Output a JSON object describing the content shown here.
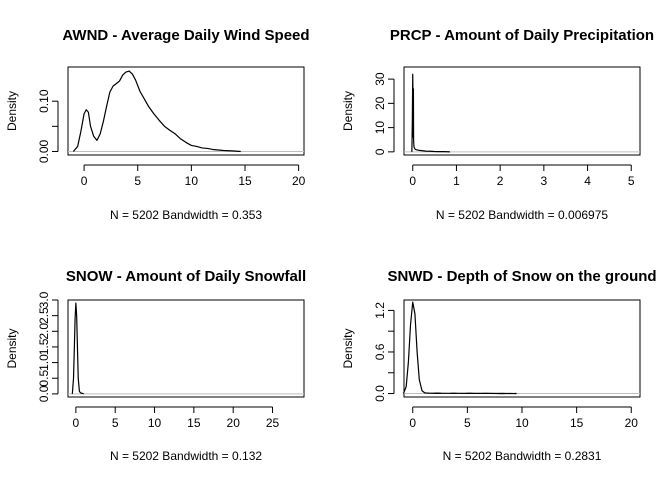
{
  "chart_data": [
    {
      "type": "line",
      "title": "AWND - Average Daily Wind Speed",
      "xlabel": "N = 5202   Bandwidth = 0.353",
      "ylabel": "Density",
      "xlim": [
        -1.5,
        20.5
      ],
      "ylim": [
        -0.007,
        0.168
      ],
      "xticks": [
        0,
        5,
        10,
        15,
        20
      ],
      "yticks": [
        0.0,
        0.05,
        0.1
      ],
      "ytick_labels": [
        "0.00",
        "",
        "0.10"
      ],
      "series": [
        {
          "x": [
            -1.0,
            -0.6,
            -0.3,
            0.0,
            0.2,
            0.4,
            0.6,
            0.9,
            1.2,
            1.5,
            1.8,
            2.1,
            2.4,
            2.7,
            3.0,
            3.3,
            3.6,
            3.9,
            4.2,
            4.5,
            4.8,
            5.2,
            5.6,
            6.0,
            6.5,
            7.0,
            7.5,
            8.0,
            8.5,
            9.0,
            9.5,
            10.0,
            10.5,
            11.0,
            11.5,
            12.0,
            13.0,
            14.0,
            14.6
          ],
          "y": [
            0.0,
            0.01,
            0.04,
            0.075,
            0.083,
            0.078,
            0.05,
            0.03,
            0.022,
            0.035,
            0.06,
            0.09,
            0.118,
            0.13,
            0.135,
            0.14,
            0.152,
            0.158,
            0.16,
            0.154,
            0.142,
            0.12,
            0.105,
            0.09,
            0.075,
            0.062,
            0.05,
            0.042,
            0.035,
            0.025,
            0.018,
            0.012,
            0.01,
            0.007,
            0.006,
            0.004,
            0.002,
            0.001,
            0.0
          ]
        }
      ]
    },
    {
      "type": "line",
      "title": "PRCP - Amount of Daily Precipitation",
      "xlabel": "N = 5202   Bandwidth = 0.006975",
      "ylabel": "Density",
      "xlim": [
        -0.2,
        5.2
      ],
      "ylim": [
        -1.3,
        35
      ],
      "xticks": [
        0,
        1,
        2,
        3,
        4,
        5
      ],
      "yticks": [
        0,
        10,
        20,
        30
      ],
      "ytick_labels": [
        "0",
        "10",
        "20",
        "30"
      ],
      "series": [
        {
          "x": [
            -0.02,
            -0.01,
            0.0,
            0.005,
            0.01,
            0.015,
            0.02,
            0.025,
            0.03,
            0.04,
            0.06,
            0.1,
            0.15,
            0.2,
            0.3,
            0.4,
            0.5,
            0.6,
            0.7,
            0.8,
            0.85
          ],
          "y": [
            0.0,
            12.0,
            32.0,
            24.0,
            6.0,
            26.0,
            5.0,
            3.0,
            2.0,
            1.5,
            1.0,
            0.8,
            0.6,
            0.5,
            0.3,
            0.25,
            0.15,
            0.1,
            0.08,
            0.05,
            0.0
          ]
        }
      ]
    },
    {
      "type": "line",
      "title": "SNOW - Amount of Daily Snowfall",
      "xlabel": "N = 5202   Bandwidth = 0.132",
      "ylabel": "Density",
      "xlim": [
        -1.0,
        29.0
      ],
      "ylim": [
        -0.1,
        3.0
      ],
      "xticks": [
        0,
        5,
        10,
        15,
        20,
        25
      ],
      "yticks": [
        0.0,
        0.5,
        1.0,
        1.5,
        2.0,
        2.5,
        3.0
      ],
      "ytick_labels": [
        "0.0",
        "0.5",
        "1.0",
        "1.5",
        "2.0",
        "2.5",
        "3.0"
      ],
      "series": [
        {
          "x": [
            -0.45,
            -0.3,
            -0.2,
            -0.1,
            0.0,
            0.1,
            0.2,
            0.3,
            0.45,
            0.6,
            0.8,
            1.0
          ],
          "y": [
            0.0,
            0.5,
            1.4,
            2.4,
            2.9,
            2.5,
            1.5,
            0.5,
            0.08,
            0.03,
            0.02,
            0.0
          ]
        }
      ]
    },
    {
      "type": "line",
      "title": "SNWD - Depth of Snow on the ground",
      "xlabel": "N = 5202   Bandwidth = 0.2831",
      "ylabel": "Density",
      "xlim": [
        -0.8,
        20.8
      ],
      "ylim": [
        -0.05,
        1.35
      ],
      "xticks": [
        0,
        5,
        10,
        15,
        20
      ],
      "yticks": [
        0.0,
        0.3,
        0.6,
        0.9,
        1.2
      ],
      "ytick_labels": [
        "0.0",
        "",
        "0.6",
        "",
        "1.2"
      ],
      "series": [
        {
          "x": [
            -0.85,
            -0.6,
            -0.4,
            -0.2,
            0.0,
            0.2,
            0.4,
            0.6,
            0.85,
            1.1,
            1.5,
            2.0,
            3.0,
            4.0,
            5.0,
            6.0,
            7.0,
            8.0,
            9.0,
            9.5
          ],
          "y": [
            0.0,
            0.1,
            0.45,
            1.0,
            1.32,
            1.15,
            0.6,
            0.2,
            0.04,
            0.01,
            0.005,
            0.004,
            0.003,
            0.003,
            0.002,
            0.002,
            0.002,
            0.001,
            0.001,
            0.0
          ]
        }
      ]
    }
  ]
}
